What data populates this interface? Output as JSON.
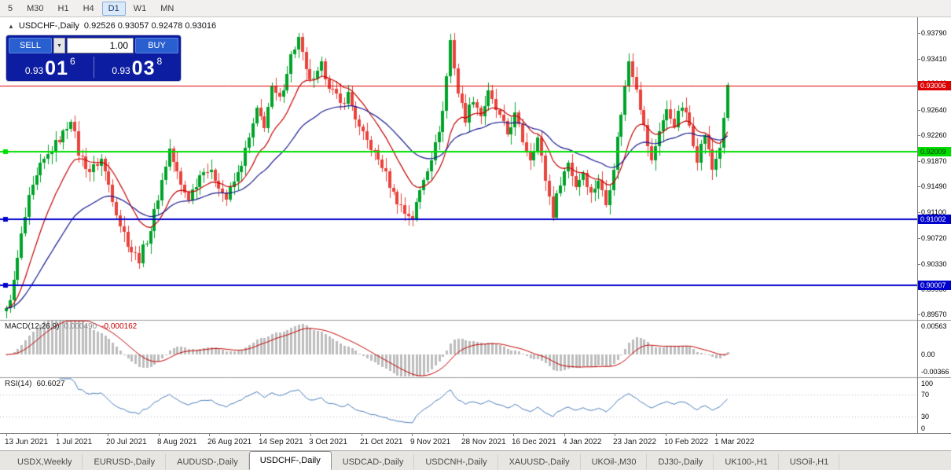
{
  "toolbar": {
    "timeframes": [
      {
        "label": "5",
        "active": false
      },
      {
        "label": "M30",
        "active": false
      },
      {
        "label": "H1",
        "active": false
      },
      {
        "label": "H4",
        "active": false
      },
      {
        "label": "D1",
        "active": true
      },
      {
        "label": "W1",
        "active": false
      },
      {
        "label": "MN",
        "active": false
      }
    ]
  },
  "chart_title": {
    "symbol": "USDCHF-,Daily",
    "ohlc": "0.92526 0.93057 0.92478 0.93016"
  },
  "trade_panel": {
    "sell_label": "SELL",
    "buy_label": "BUY",
    "volume": "1.00",
    "sell_price": {
      "base": "0.93",
      "big": "01",
      "sup": "6"
    },
    "buy_price": {
      "base": "0.93",
      "big": "03",
      "sup": "8"
    }
  },
  "main_chart": {
    "bars": 191,
    "price_min": 0.8949,
    "price_max": 0.9403,
    "up_color": "#00a32a",
    "down_color": "#e8433c",
    "ma_fast_color": "#c40000",
    "ma_slow_color": "#16188f",
    "scale_ticks": [
      "0.93790",
      "0.93410",
      "0.93040",
      "0.92640",
      "0.92260",
      "0.91870",
      "0.91490",
      "0.91100",
      "0.90720",
      "0.90330",
      "0.89950",
      "0.89570"
    ],
    "levels": [
      {
        "price": 0.93006,
        "label": "0.93006",
        "color": "#dc0000",
        "text": "#ffffff",
        "lw": 1,
        "handle": false
      },
      {
        "price": 0.92009,
        "label": "0.92009",
        "color": "#00dc00",
        "text": "#003300",
        "lw": 2,
        "handle": true
      },
      {
        "price": 0.91002,
        "label": "0.91002",
        "color": "#0000cc",
        "text": "#ffffff",
        "lw": 2,
        "handle": true
      },
      {
        "price": 0.90007,
        "label": "0.90007",
        "color": "#0000cc",
        "text": "#ffffff",
        "lw": 2,
        "handle": true
      }
    ],
    "last_bar": {
      "open": 0.92526,
      "high": 0.93057,
      "low": 0.92478,
      "close": 0.93016
    },
    "anchors": [
      [
        0,
        0.8962
      ],
      [
        2,
        0.9005
      ],
      [
        4,
        0.9075
      ],
      [
        6,
        0.913
      ],
      [
        9,
        0.9178
      ],
      [
        12,
        0.9205
      ],
      [
        15,
        0.9228
      ],
      [
        17,
        0.9252
      ],
      [
        19,
        0.92
      ],
      [
        22,
        0.9172
      ],
      [
        25,
        0.919
      ],
      [
        27,
        0.9152
      ],
      [
        30,
        0.9092
      ],
      [
        33,
        0.9052
      ],
      [
        35,
        0.904
      ],
      [
        38,
        0.9085
      ],
      [
        41,
        0.9158
      ],
      [
        43,
        0.9205
      ],
      [
        46,
        0.915
      ],
      [
        48,
        0.9132
      ],
      [
        52,
        0.9178
      ],
      [
        55,
        0.9162
      ],
      [
        58,
        0.9131
      ],
      [
        61,
        0.9168
      ],
      [
        64,
        0.922
      ],
      [
        66,
        0.9262
      ],
      [
        68,
        0.9242
      ],
      [
        70,
        0.9295
      ],
      [
        72,
        0.9278
      ],
      [
        75,
        0.9345
      ],
      [
        77,
        0.9372
      ],
      [
        79,
        0.932
      ],
      [
        81,
        0.9305
      ],
      [
        83,
        0.933
      ],
      [
        85,
        0.9302
      ],
      [
        88,
        0.9272
      ],
      [
        90,
        0.9288
      ],
      [
        93,
        0.9235
      ],
      [
        96,
        0.9208
      ],
      [
        99,
        0.918
      ],
      [
        102,
        0.9138
      ],
      [
        105,
        0.911
      ],
      [
        107,
        0.9103
      ],
      [
        110,
        0.9162
      ],
      [
        113,
        0.921
      ],
      [
        115,
        0.9262
      ],
      [
        117,
        0.9368
      ],
      [
        119,
        0.929
      ],
      [
        121,
        0.9252
      ],
      [
        123,
        0.9282
      ],
      [
        125,
        0.9256
      ],
      [
        127,
        0.9288
      ],
      [
        130,
        0.9252
      ],
      [
        132,
        0.9228
      ],
      [
        134,
        0.9256
      ],
      [
        136,
        0.9218
      ],
      [
        138,
        0.9192
      ],
      [
        140,
        0.9222
      ],
      [
        142,
        0.916
      ],
      [
        144,
        0.9108
      ],
      [
        146,
        0.9158
      ],
      [
        148,
        0.9185
      ],
      [
        150,
        0.915
      ],
      [
        152,
        0.9172
      ],
      [
        154,
        0.9138
      ],
      [
        156,
        0.916
      ],
      [
        158,
        0.9122
      ],
      [
        160,
        0.918
      ],
      [
        162,
        0.926
      ],
      [
        164,
        0.9338
      ],
      [
        166,
        0.93
      ],
      [
        168,
        0.9238
      ],
      [
        170,
        0.9185
      ],
      [
        172,
        0.9235
      ],
      [
        174,
        0.9262
      ],
      [
        176,
        0.9244
      ],
      [
        178,
        0.927
      ],
      [
        180,
        0.924
      ],
      [
        182,
        0.9192
      ],
      [
        184,
        0.9228
      ],
      [
        186,
        0.9175
      ],
      [
        188,
        0.921
      ],
      [
        189,
        0.92526
      ],
      [
        190,
        0.93016
      ]
    ],
    "dates": [
      "13 Jun 2021",
      "1 Jul 2021",
      "20 Jul 2021",
      "8 Aug 2021",
      "26 Aug 2021",
      "14 Sep 2021",
      "3 Oct 2021",
      "21 Oct 2021",
      "9 Nov 2021",
      "28 Nov 2021",
      "16 Dec 2021",
      "4 Jan 2022",
      "23 Jan 2022",
      "10 Feb 2022",
      "1 Mar 2022"
    ]
  },
  "macd": {
    "title": "MACD(12,26,9)",
    "value_main": "0.000490",
    "value_signal": "-0.000162",
    "scale_max": "0.00563",
    "scale_zero": "0.00",
    "scale_min": "-0.00366",
    "hist_color": "#bdbdbd",
    "signal_color": "#c40000"
  },
  "rsi": {
    "title": "RSI(14)",
    "value": "60.6027",
    "levels": [
      "100",
      "70",
      "30",
      "0"
    ],
    "line_color": "#4a7ebb"
  },
  "tabs": [
    {
      "label": "USDX,Weekly",
      "active": false
    },
    {
      "label": "EURUSD-,Daily",
      "active": false
    },
    {
      "label": "AUDUSD-,Daily",
      "active": false
    },
    {
      "label": "USDCHF-,Daily",
      "active": true
    },
    {
      "label": "USDCAD-,Daily",
      "active": false
    },
    {
      "label": "USDCNH-,Daily",
      "active": false
    },
    {
      "label": "XAUUSD-,Daily",
      "active": false
    },
    {
      "label": "UKOil-,M30",
      "active": false
    },
    {
      "label": "DJ30-,Daily",
      "active": false
    },
    {
      "label": "UK100-,H1",
      "active": false
    },
    {
      "label": "USOil-,H1",
      "active": false
    }
  ]
}
